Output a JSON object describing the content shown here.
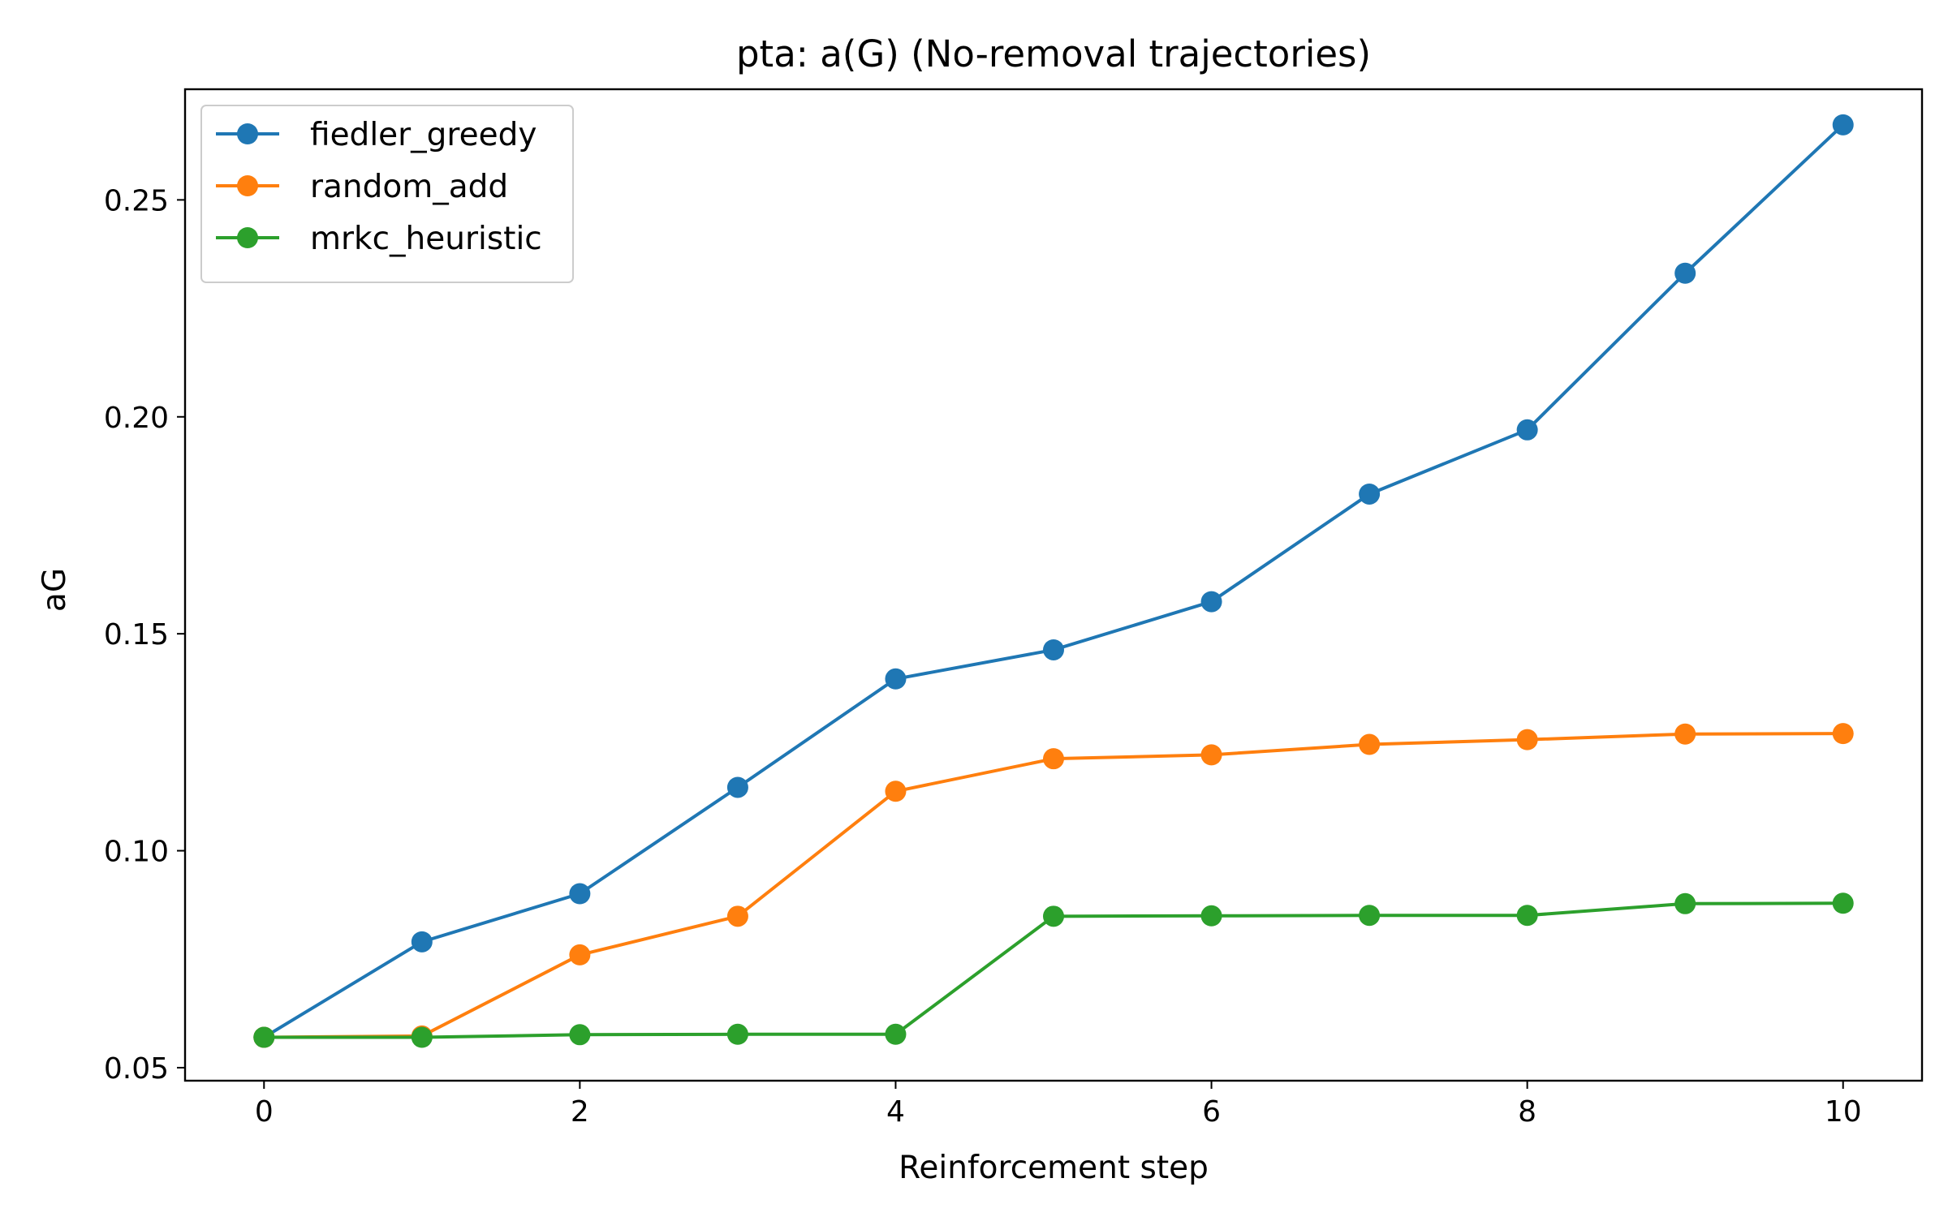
{
  "chart_data": {
    "type": "line",
    "title": "pta: a(G) (No-removal trajectories)",
    "xlabel": "Reinforcement step",
    "ylabel": "aG",
    "xlim": [
      -0.5,
      10.5
    ],
    "ylim": [
      0.047,
      0.2755
    ],
    "xticks": [
      0,
      2,
      4,
      6,
      8,
      10
    ],
    "yticks": [
      0.05,
      0.1,
      0.15,
      0.2,
      0.25
    ],
    "ytick_labels": [
      "0.05",
      "0.10",
      "0.15",
      "0.20",
      "0.25"
    ],
    "x": [
      0,
      1,
      2,
      3,
      4,
      5,
      6,
      7,
      8,
      9,
      10
    ],
    "grid": false,
    "legend": "top-left",
    "series": [
      {
        "name": "fiedler_greedy",
        "color": "#1f77b4",
        "values": [
          0.057,
          0.079,
          0.0901,
          0.1146,
          0.1396,
          0.1463,
          0.1574,
          0.1822,
          0.197,
          0.2331,
          0.2673
        ]
      },
      {
        "name": "random_add",
        "color": "#ff7f0e",
        "values": [
          0.057,
          0.0573,
          0.076,
          0.0849,
          0.1137,
          0.1212,
          0.1221,
          0.1245,
          0.1256,
          0.1269,
          0.127
        ]
      },
      {
        "name": "mrkc_heuristic",
        "color": "#2ca02c",
        "values": [
          0.057,
          0.057,
          0.0576,
          0.0577,
          0.0577,
          0.0849,
          0.085,
          0.0851,
          0.0851,
          0.0878,
          0.0879
        ]
      }
    ]
  }
}
